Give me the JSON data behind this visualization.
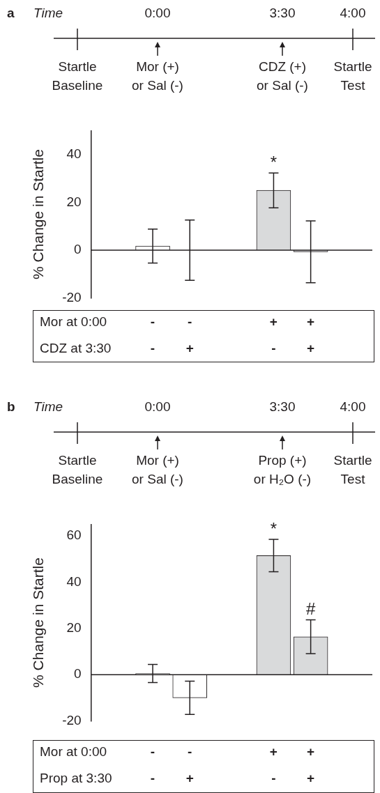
{
  "chart_data": [
    {
      "type": "bar",
      "title": "a",
      "ylabel": "% Change in Startle",
      "categories": [
        null,
        null,
        null,
        null
      ],
      "values": [
        1.7,
        0,
        25,
        -0.7
      ],
      "errors": [
        7.1,
        12.6,
        7.3,
        12.9
      ],
      "colors": [
        "#ffffff",
        "#ffffff",
        "#d9dadb",
        "#d9dadb"
      ],
      "value_labels": [
        null,
        null,
        "*",
        null
      ],
      "ylim": [
        -20,
        50
      ],
      "yticks": [
        -20,
        0,
        20,
        40
      ],
      "annotations": [
        "Time",
        "0:00",
        "3:30",
        "4:00",
        "Startle\nBaseline",
        "Mor (+)\nor Sal (-)",
        "CDZ (+)\nor Sal (-)",
        "Startle\nTest",
        "Mor at 0:00",
        "-",
        "-",
        "+",
        "+",
        "CDZ at 3:30",
        "-",
        "+",
        "-",
        "+"
      ]
    },
    {
      "type": "bar",
      "title": "b",
      "ylabel": "% Change in Startle",
      "categories": [
        null,
        null,
        null,
        null
      ],
      "values": [
        0.5,
        -10,
        51.5,
        16.4
      ],
      "errors": [
        3.9,
        7.2,
        7,
        7.3
      ],
      "colors": [
        "#ffffff",
        "#ffffff",
        "#d9dadb",
        "#d9dadb"
      ],
      "value_labels": [
        null,
        null,
        "*",
        "#"
      ],
      "ylim": [
        -20,
        65
      ],
      "yticks": [
        -20,
        0,
        20,
        40,
        60
      ],
      "annotations": [
        "Time",
        "0:00",
        "3:30",
        "4:00",
        "Startle\nBaseline",
        "Mor (+)\nor Sal (-)",
        "Prop (+)\nor H₂O (-)",
        "Startle\nTest",
        "Mor at 0:00",
        "-",
        "-",
        "+",
        "+",
        "Prop at 3:30",
        "-",
        "+",
        "-",
        "+"
      ]
    }
  ]
}
